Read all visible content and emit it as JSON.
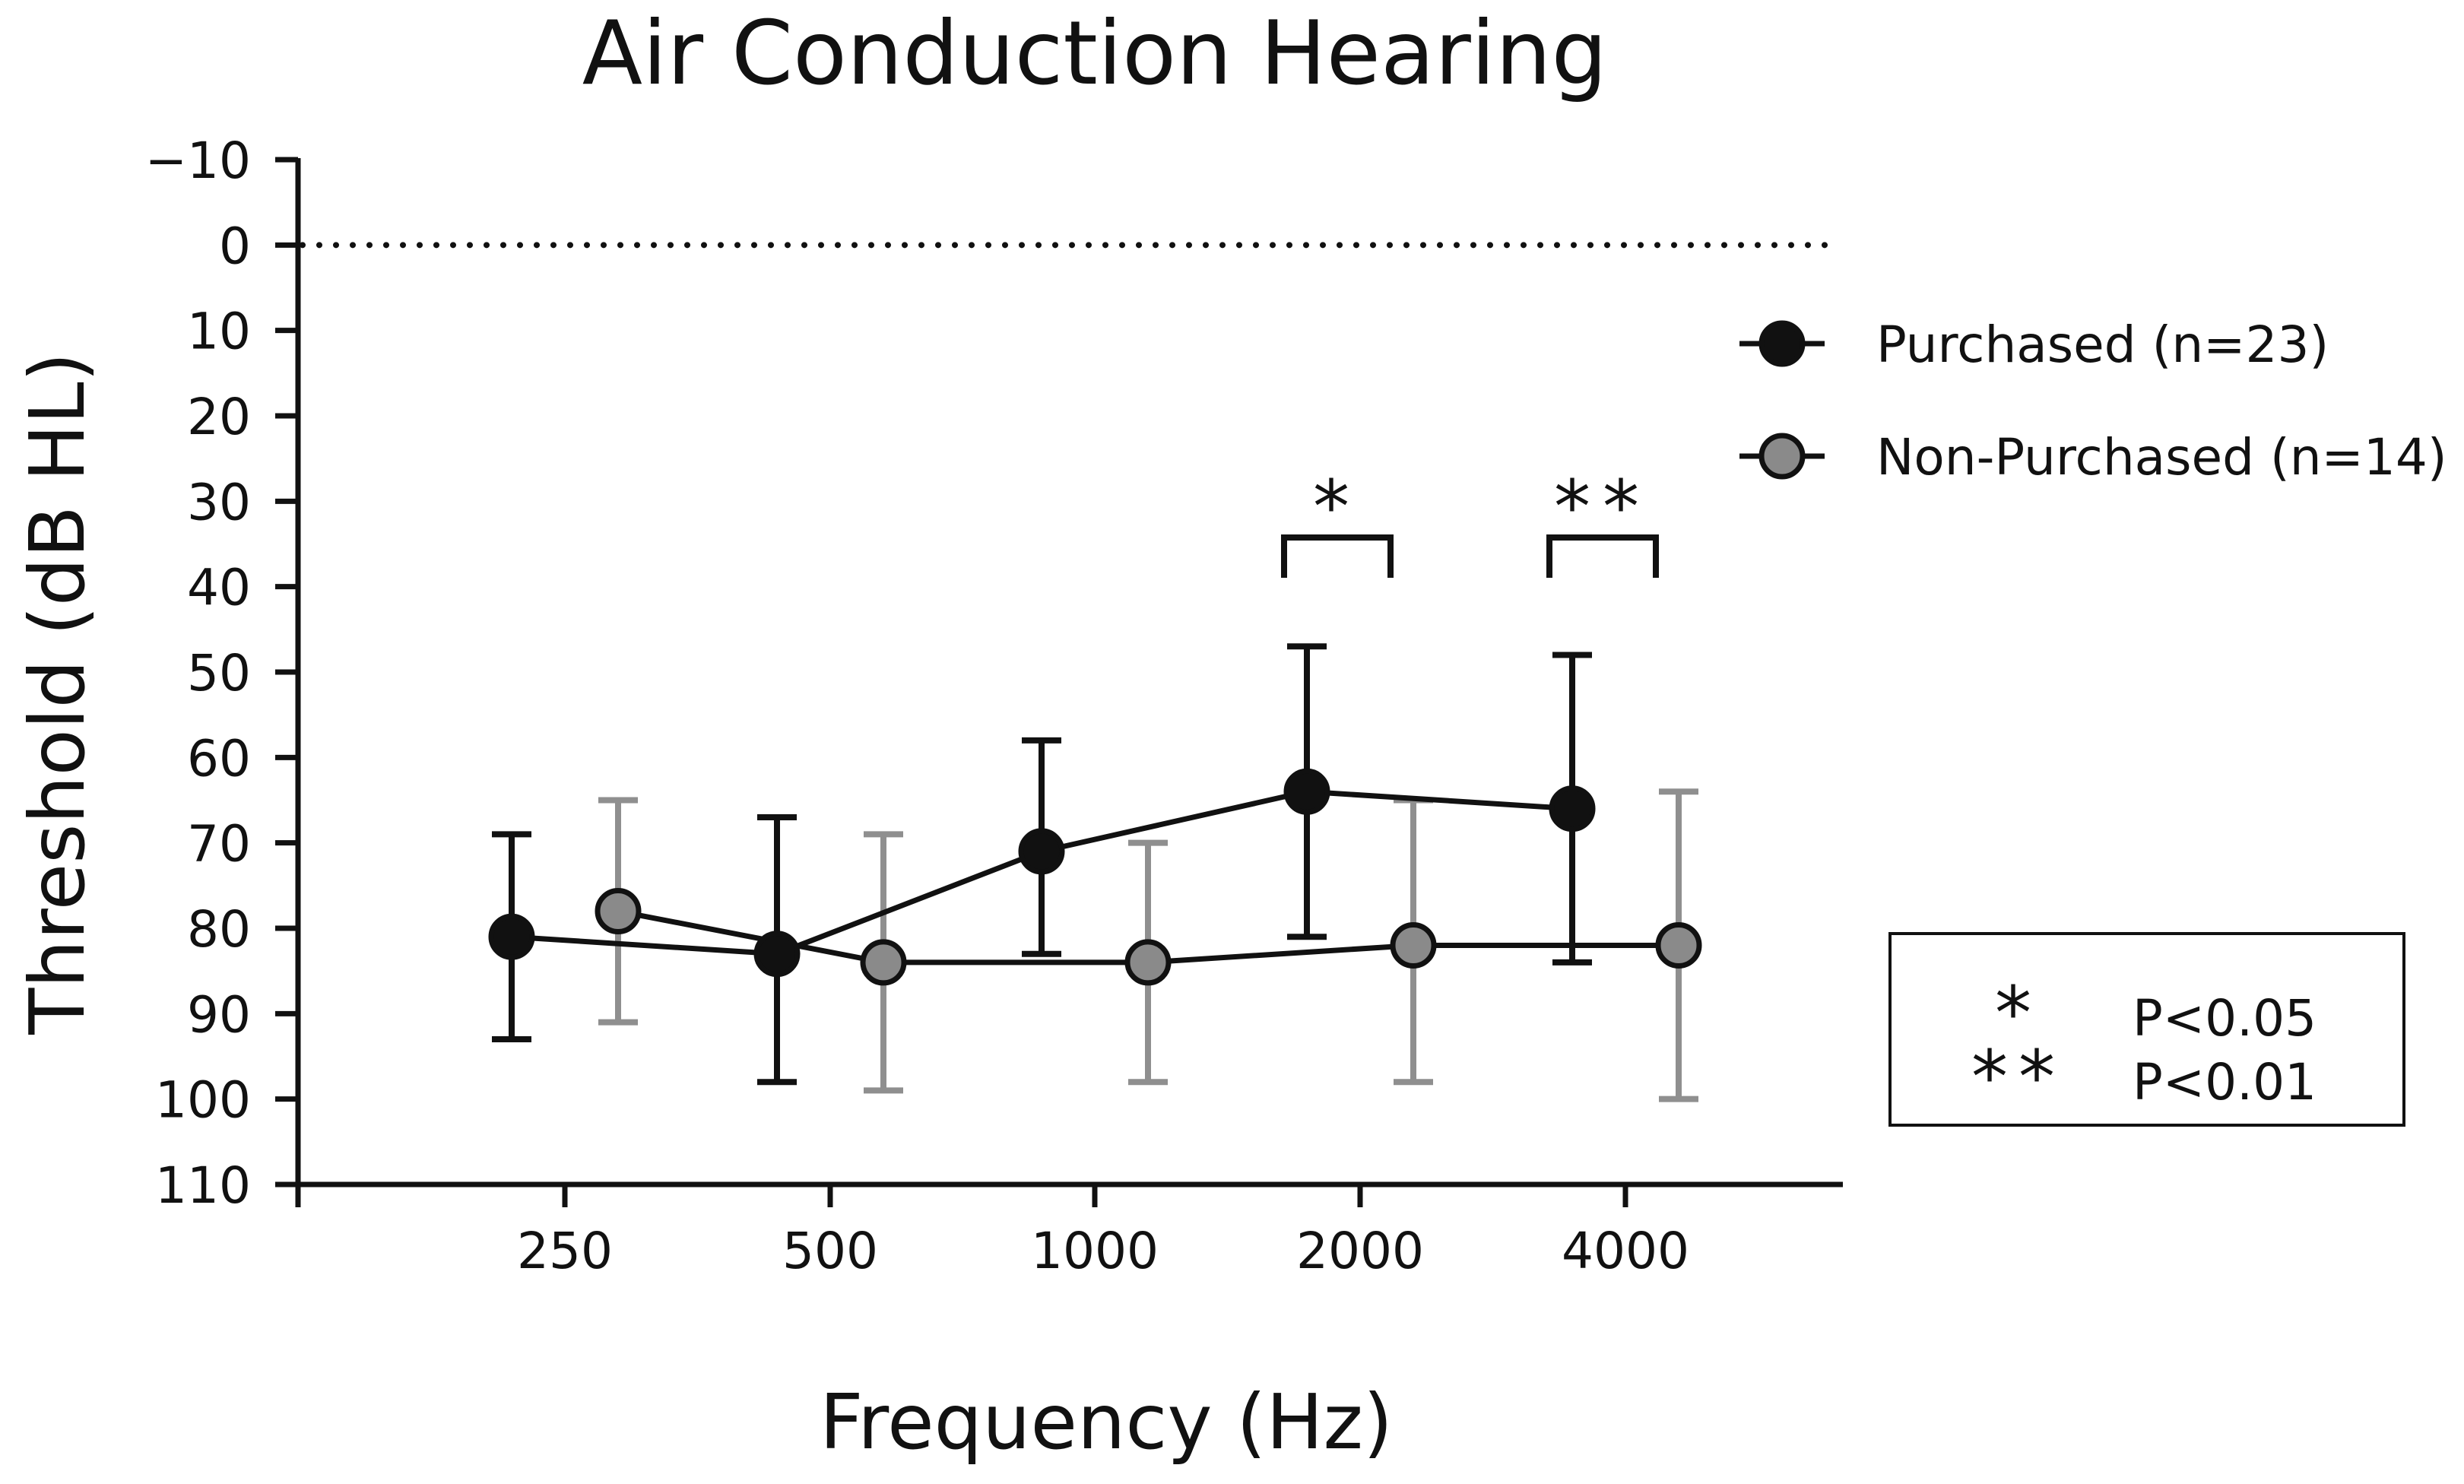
{
  "chart_data": {
    "type": "line",
    "title": "Air Conduction Hearing",
    "xlabel": "Frequency (Hz)",
    "ylabel": "Threshold (dB HL)",
    "categories": [
      "250",
      "500",
      "1000",
      "2000",
      "4000"
    ],
    "ylim": [
      -10,
      110
    ],
    "y_inverted": true,
    "yticks": [
      -10,
      0,
      10,
      20,
      30,
      40,
      50,
      60,
      70,
      80,
      90,
      100,
      110
    ],
    "ytick_labels": [
      "−10",
      "0",
      "10",
      "20",
      "30",
      "40",
      "50",
      "60",
      "70",
      "80",
      "90",
      "100",
      "110"
    ],
    "reference_line": {
      "y": 0,
      "style": "dotted"
    },
    "series": [
      {
        "name": "Purchased (n=23)",
        "color": "#111111",
        "values": [
          81,
          83,
          71,
          64,
          66
        ],
        "error_upper": [
          69,
          67,
          58,
          47,
          48
        ],
        "error_lower": [
          93,
          98,
          83,
          81,
          84
        ]
      },
      {
        "name": "Non-Purchased (n=14)",
        "color": "#8a8a8a",
        "values": [
          78,
          84,
          84,
          82,
          82
        ],
        "error_upper": [
          65,
          69,
          70,
          65,
          64
        ],
        "error_lower": [
          91,
          99,
          98,
          98,
          100
        ]
      }
    ],
    "significance": [
      {
        "category": "2000",
        "mark": "*"
      },
      {
        "category": "4000",
        "mark": "**"
      }
    ],
    "significance_legend": [
      {
        "mark": "*",
        "label": "P<0.05"
      },
      {
        "mark": "**",
        "label": "P<0.01"
      }
    ],
    "legend_position": "right"
  }
}
